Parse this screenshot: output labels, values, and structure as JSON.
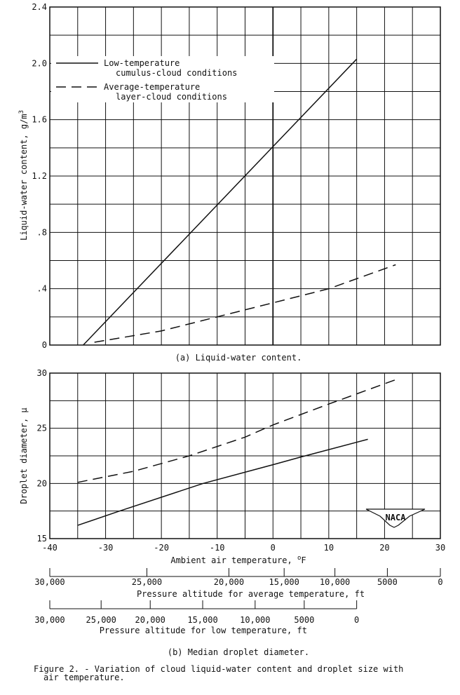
{
  "chart_data": [
    {
      "type": "line",
      "id": "a",
      "caption": "(a) Liquid-water content.",
      "ylabel": "Liquid-water content, g/m",
      "ylabel_sup": "3",
      "xlim": [
        -40,
        30
      ],
      "ylim": [
        0,
        2.4
      ],
      "grid": true,
      "x_grid_step": 5,
      "y_grid_step": 0.2,
      "yticks": [
        {
          "v": 0,
          "label": "0"
        },
        {
          "v": 0.4,
          "label": ".4"
        },
        {
          "v": 0.8,
          "label": ".8"
        },
        {
          "v": 1.2,
          "label": "1.2"
        },
        {
          "v": 1.6,
          "label": "1.6"
        },
        {
          "v": 2.0,
          "label": "2.0"
        },
        {
          "v": 2.4,
          "label": "2.4"
        }
      ],
      "legend_placement": "upper-left",
      "legend": [
        {
          "style": "solid",
          "line1": "Low-temperature",
          "line2": "cumulus-cloud conditions"
        },
        {
          "style": "dashed",
          "line1": "Average-temperature",
          "line2": "layer-cloud conditions"
        }
      ],
      "series": [
        {
          "style": "solid",
          "points": [
            [
              -34,
              0
            ],
            [
              15,
              2.03
            ]
          ]
        },
        {
          "style": "dashed",
          "points": [
            [
              -32,
              0.02
            ],
            [
              -20,
              0.1
            ],
            [
              -10,
              0.2
            ],
            [
              0,
              0.3
            ],
            [
              10,
              0.4
            ],
            [
              22,
              0.57
            ]
          ]
        }
      ]
    },
    {
      "type": "line",
      "id": "b",
      "caption": "(b) Median droplet diameter.",
      "ylabel": "Droplet diameter, μ",
      "xlabel": "Ambient air temperature, ",
      "xlabel_unit": "F",
      "xlabel_deg": "o",
      "xlim": [
        -40,
        30
      ],
      "ylim": [
        15,
        30
      ],
      "grid": true,
      "x_grid_step": 5,
      "y_grid_step": 2.5,
      "xticks": [
        {
          "v": -40,
          "label": "-40"
        },
        {
          "v": -30,
          "label": "-30"
        },
        {
          "v": -20,
          "label": "-20"
        },
        {
          "v": -10,
          "label": "-10"
        },
        {
          "v": 0,
          "label": "0"
        },
        {
          "v": 10,
          "label": "10"
        },
        {
          "v": 20,
          "label": "20"
        },
        {
          "v": 30,
          "label": "30"
        }
      ],
      "yticks": [
        {
          "v": 15,
          "label": "15"
        },
        {
          "v": 20,
          "label": "20"
        },
        {
          "v": 25,
          "label": "25"
        },
        {
          "v": 30,
          "label": "30"
        }
      ],
      "series": [
        {
          "style": "solid",
          "points": [
            [
              -35,
              16.2
            ],
            [
              -27.5,
              17.5
            ],
            [
              -12.5,
              20
            ],
            [
              0,
              21.7
            ],
            [
              5,
              22.4
            ],
            [
              17,
              24
            ]
          ]
        },
        {
          "style": "dashed",
          "points": [
            [
              -35,
              20.1
            ],
            [
              -25,
              21.1
            ],
            [
              -15,
              22.5
            ],
            [
              -5,
              24.2
            ],
            [
              0,
              25.3
            ],
            [
              10,
              27.2
            ],
            [
              22,
              29.4
            ]
          ]
        }
      ],
      "secondary_axes": [
        {
          "title": "Pressure altitude for average temperature, ft",
          "ticks": [
            {
              "t": -40,
              "label": "30,000"
            },
            {
              "t": -22.6,
              "label": "25,000"
            },
            {
              "t": -7.9,
              "label": "20,000"
            },
            {
              "t": 2,
              "label": "15,000"
            },
            {
              "t": 11.1,
              "label": "10,000"
            },
            {
              "t": 20.5,
              "label": "5000"
            },
            {
              "t": 30,
              "label": "0"
            }
          ]
        },
        {
          "title": "Pressure altitude for low temperature, ft",
          "ticks": [
            {
              "t": -40,
              "label": "30,000"
            },
            {
              "t": -30.8,
              "label": "25,000"
            },
            {
              "t": -22,
              "label": "20,000"
            },
            {
              "t": -12.6,
              "label": "15,000"
            },
            {
              "t": -3.2,
              "label": "10,000"
            },
            {
              "t": 5.6,
              "label": "5000"
            },
            {
              "t": 15,
              "label": "0"
            }
          ]
        }
      ],
      "logo": "NACA"
    }
  ],
  "figure_caption": {
    "line1": "Figure 2. - Variation of cloud liquid-water content and droplet size with",
    "line2": "air temperature."
  }
}
